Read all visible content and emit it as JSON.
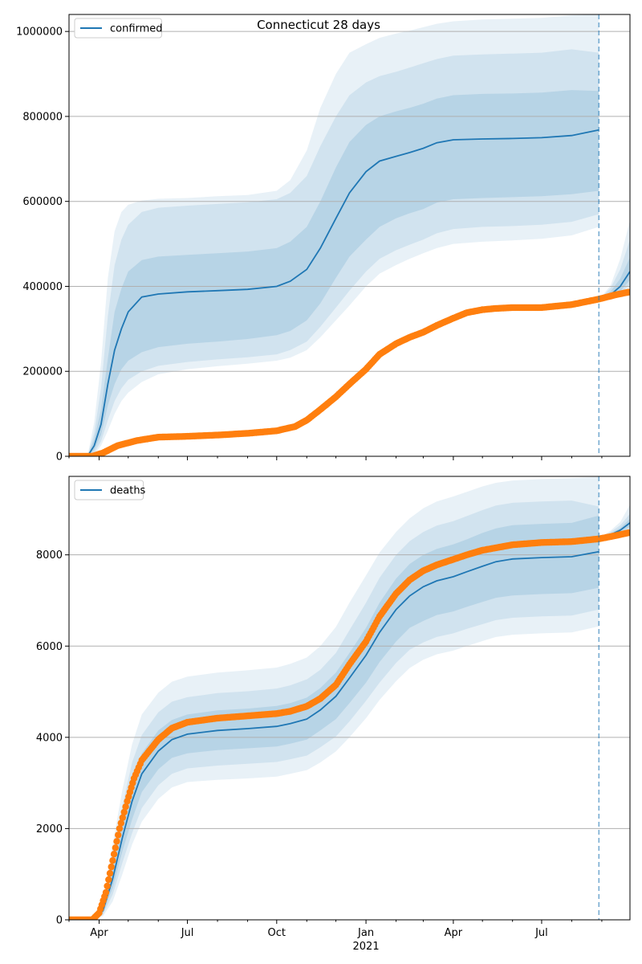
{
  "figure": {
    "title": "Connecticut 28 days"
  },
  "chart_data": [
    {
      "type": "line",
      "name": "confirmed-panel",
      "title": "Connecticut 28 days",
      "xlim": [
        "2020-03-01",
        "2021-09-30"
      ],
      "ylim": [
        0,
        1040000
      ],
      "y_ticks": [
        0,
        200000,
        400000,
        600000,
        800000,
        1000000
      ],
      "y_tick_labels": [
        "0",
        "200000",
        "400000",
        "600000",
        "800000",
        "1000000"
      ],
      "x_tick_labels": [],
      "x_year_label": "",
      "grid": "horizontal",
      "legend": {
        "position": "top-left",
        "entries": [
          "confirmed"
        ]
      },
      "forecast_date": "2021-08-29",
      "series_model": {
        "name": "confirmed",
        "color": "#1f77b4",
        "dates": [
          "2020-03-01",
          "2020-03-20",
          "2020-03-27",
          "2020-04-03",
          "2020-04-10",
          "2020-04-17",
          "2020-04-24",
          "2020-05-01",
          "2020-05-15",
          "2020-06-01",
          "2020-07-01",
          "2020-08-01",
          "2020-09-01",
          "2020-10-01",
          "2020-10-15",
          "2020-11-01",
          "2020-11-15",
          "2020-12-01",
          "2020-12-15",
          "2021-01-01",
          "2021-01-15",
          "2021-02-01",
          "2021-02-15",
          "2021-03-01",
          "2021-03-15",
          "2021-04-01",
          "2021-05-01",
          "2021-06-01",
          "2021-07-01",
          "2021-08-01",
          "2021-08-29"
        ],
        "values": [
          0,
          0,
          25000,
          75000,
          170000,
          250000,
          300000,
          340000,
          375000,
          382000,
          387000,
          390000,
          393000,
          400000,
          412000,
          440000,
          490000,
          560000,
          620000,
          670000,
          695000,
          706000,
          715000,
          725000,
          738000,
          745000,
          747000,
          748000,
          750000,
          755000,
          768000
        ],
        "bands": [
          {
            "lower": [
              0,
              0,
              15000,
              50000,
              120000,
              170000,
              205000,
              225000,
              245000,
              257000,
              265000,
              270000,
              276000,
              285000,
              295000,
              320000,
              360000,
              420000,
              470000,
              510000,
              540000,
              560000,
              572000,
              582000,
              597000,
              605000,
              608000,
              610000,
              612000,
              617000,
              625000
            ],
            "upper": [
              0,
              0,
              40000,
              110000,
              230000,
              340000,
              395000,
              435000,
              462000,
              470000,
              474000,
              478000,
              482000,
              490000,
              505000,
              540000,
              600000,
              680000,
              740000,
              780000,
              800000,
              812000,
              820000,
              830000,
              842000,
              850000,
              853000,
              854000,
              856000,
              862000,
              860000
            ]
          },
          {
            "lower": [
              0,
              0,
              8000,
              35000,
              85000,
              130000,
              160000,
              180000,
              200000,
              213000,
              222000,
              228000,
              233000,
              240000,
              250000,
              270000,
              305000,
              350000,
              390000,
              435000,
              465000,
              485000,
              498000,
              510000,
              525000,
              535000,
              540000,
              542000,
              545000,
              552000,
              570000
            ],
            "upper": [
              0,
              0,
              55000,
              160000,
              330000,
              450000,
              510000,
              545000,
              575000,
              585000,
              590000,
              594000,
              598000,
              605000,
              620000,
              660000,
              730000,
              800000,
              850000,
              880000,
              895000,
              905000,
              915000,
              925000,
              935000,
              943000,
              946000,
              948000,
              950000,
              958000,
              950000
            ]
          },
          {
            "lower": [
              0,
              0,
              4000,
              25000,
              60000,
              100000,
              130000,
              150000,
              175000,
              193000,
              205000,
              212000,
              218000,
              225000,
              232000,
              250000,
              280000,
              320000,
              355000,
              400000,
              430000,
              450000,
              465000,
              478000,
              490000,
              500000,
              505000,
              508000,
              512000,
              520000,
              540000
            ],
            "upper": [
              0,
              0,
              80000,
              220000,
              420000,
              530000,
              575000,
              592000,
              602000,
              606000,
              608000,
              612000,
              615000,
              625000,
              650000,
              720000,
              820000,
              900000,
              950000,
              970000,
              985000,
              995000,
              1002000,
              1010000,
              1018000,
              1024000,
              1028000,
              1030000,
              1032000,
              1038000,
              1040000
            ]
          }
        ],
        "tail_dates": [
          "2021-08-29",
          "2021-09-10",
          "2021-09-20",
          "2021-09-30"
        ],
        "tail_values": [
          368000,
          380000,
          400000,
          435000
        ],
        "tail_bands": [
          {
            "lower": [
              368000,
              374000,
              388000,
              415000
            ],
            "upper": [
              368000,
              388000,
              418000,
              468000
            ]
          },
          {
            "lower": [
              368000,
              371000,
              382000,
              405000
            ],
            "upper": [
              368000,
              396000,
              440000,
              510000
            ]
          },
          {
            "lower": [
              368000,
              369000,
              378000,
              398000
            ],
            "upper": [
              368000,
              402000,
              465000,
              555000
            ]
          }
        ]
      },
      "series_observed": {
        "color": "#ff7f0e",
        "dates": [
          "2020-03-01",
          "2020-03-25",
          "2020-04-05",
          "2020-04-20",
          "2020-05-10",
          "2020-06-01",
          "2020-07-01",
          "2020-08-01",
          "2020-09-01",
          "2020-10-01",
          "2020-10-20",
          "2020-11-01",
          "2020-11-15",
          "2020-12-01",
          "2020-12-15",
          "2021-01-01",
          "2021-01-15",
          "2021-02-01",
          "2021-02-15",
          "2021-03-01",
          "2021-03-15",
          "2021-04-01",
          "2021-04-15",
          "2021-05-01",
          "2021-05-15",
          "2021-06-01",
          "2021-07-01",
          "2021-08-01",
          "2021-08-29",
          "2021-09-15",
          "2021-09-30"
        ],
        "values": [
          0,
          0,
          8000,
          25000,
          37000,
          45000,
          47000,
          50000,
          54000,
          60000,
          70000,
          85000,
          110000,
          140000,
          170000,
          205000,
          240000,
          265000,
          280000,
          292000,
          308000,
          325000,
          338000,
          345000,
          348000,
          350000,
          350000,
          357000,
          370000,
          380000,
          387000
        ]
      }
    },
    {
      "type": "line",
      "name": "deaths-panel",
      "xlim": [
        "2020-03-01",
        "2021-09-30"
      ],
      "ylim": [
        0,
        9720
      ],
      "y_ticks": [
        0,
        2000,
        4000,
        6000,
        8000
      ],
      "y_tick_labels": [
        "0",
        "2000",
        "4000",
        "6000",
        "8000"
      ],
      "x_tick_labels": [
        {
          "date": "2020-04-01",
          "label": "Apr"
        },
        {
          "date": "2020-07-01",
          "label": "Jul"
        },
        {
          "date": "2020-10-01",
          "label": "Oct"
        },
        {
          "date": "2021-01-01",
          "label": "Jan"
        },
        {
          "date": "2021-04-01",
          "label": "Apr"
        },
        {
          "date": "2021-07-01",
          "label": "Jul"
        }
      ],
      "x_year_label": "2021",
      "grid": "horizontal",
      "legend": {
        "position": "top-left",
        "entries": [
          "deaths"
        ]
      },
      "forecast_date": "2021-08-29",
      "series_model": {
        "name": "deaths",
        "color": "#1f77b4",
        "dates": [
          "2020-03-01",
          "2020-03-25",
          "2020-04-05",
          "2020-04-15",
          "2020-04-25",
          "2020-05-05",
          "2020-05-15",
          "2020-06-01",
          "2020-06-15",
          "2020-07-01",
          "2020-08-01",
          "2020-09-01",
          "2020-10-01",
          "2020-10-15",
          "2020-11-01",
          "2020-11-15",
          "2020-12-01",
          "2020-12-15",
          "2021-01-01",
          "2021-01-15",
          "2021-02-01",
          "2021-02-15",
          "2021-03-01",
          "2021-03-15",
          "2021-04-01",
          "2021-04-15",
          "2021-05-01",
          "2021-05-15",
          "2021-06-01",
          "2021-07-01",
          "2021-08-01",
          "2021-08-29"
        ],
        "values": [
          0,
          0,
          200,
          900,
          1800,
          2600,
          3200,
          3700,
          3950,
          4070,
          4150,
          4190,
          4240,
          4300,
          4400,
          4600,
          4900,
          5300,
          5800,
          6300,
          6800,
          7100,
          7300,
          7430,
          7520,
          7630,
          7750,
          7850,
          7910,
          7940,
          7960,
          8070
        ],
        "bands": [
          {
            "lower": [
              0,
              0,
              150,
              700,
              1500,
              2200,
              2800,
              3300,
              3550,
              3650,
              3720,
              3760,
              3800,
              3860,
              3950,
              4150,
              4400,
              4750,
              5200,
              5650,
              6100,
              6400,
              6550,
              6680,
              6760,
              6860,
              6970,
              7060,
              7110,
              7140,
              7160,
              7280
            ],
            "upper": [
              0,
              0,
              260,
              1150,
              2150,
              3050,
              3650,
              4150,
              4380,
              4500,
              4590,
              4630,
              4690,
              4750,
              4870,
              5080,
              5420,
              5850,
              6400,
              6950,
              7480,
              7800,
              8000,
              8130,
              8230,
              8340,
              8480,
              8580,
              8650,
              8680,
              8700,
              8860
            ]
          },
          {
            "lower": [
              0,
              0,
              110,
              550,
              1250,
              1900,
              2450,
              2950,
              3200,
              3320,
              3380,
              3420,
              3460,
              3520,
              3600,
              3780,
              4020,
              4350,
              4800,
              5200,
              5630,
              5920,
              6080,
              6200,
              6280,
              6380,
              6480,
              6570,
              6620,
              6650,
              6670,
              6800
            ],
            "upper": [
              0,
              0,
              320,
              1400,
              2500,
              3450,
              4050,
              4550,
              4780,
              4880,
              4970,
              5010,
              5070,
              5140,
              5270,
              5480,
              5850,
              6350,
              6950,
              7500,
              8000,
              8300,
              8500,
              8640,
              8740,
              8850,
              8980,
              9080,
              9140,
              9170,
              9190,
              9060
            ]
          },
          {
            "lower": [
              0,
              0,
              80,
              400,
              1000,
              1650,
              2150,
              2650,
              2900,
              3020,
              3070,
              3100,
              3140,
              3200,
              3280,
              3450,
              3690,
              4000,
              4420,
              4820,
              5230,
              5520,
              5700,
              5820,
              5900,
              6000,
              6110,
              6200,
              6250,
              6280,
              6300,
              6430
            ],
            "upper": [
              0,
              0,
              380,
              1650,
              2850,
              3850,
              4500,
              4980,
              5220,
              5330,
              5420,
              5470,
              5530,
              5610,
              5750,
              6000,
              6420,
              6950,
              7550,
              8050,
              8500,
              8800,
              9020,
              9170,
              9280,
              9380,
              9500,
              9580,
              9630,
              9660,
              9680,
              9710
            ]
          }
        ],
        "tail_dates": [
          "2021-08-29",
          "2021-09-10",
          "2021-09-20",
          "2021-09-30"
        ],
        "tail_values": [
          8350,
          8440,
          8540,
          8700
        ],
        "tail_bands": [
          {
            "lower": [
              8350,
              8410,
              8490,
              8620
            ],
            "upper": [
              8350,
              8470,
              8590,
              8790
            ]
          },
          {
            "lower": [
              8350,
              8390,
              8450,
              8560
            ],
            "upper": [
              8350,
              8500,
              8650,
              8900
            ]
          },
          {
            "lower": [
              8350,
              8370,
              8420,
              8500
            ],
            "upper": [
              8350,
              8530,
              8720,
              9100
            ]
          }
        ]
      },
      "series_observed": {
        "color": "#ff7f0e",
        "dates": [
          "2020-03-01",
          "2020-03-25",
          "2020-04-01",
          "2020-04-08",
          "2020-04-15",
          "2020-04-22",
          "2020-04-30",
          "2020-05-07",
          "2020-05-15",
          "2020-06-01",
          "2020-06-15",
          "2020-07-01",
          "2020-08-01",
          "2020-09-01",
          "2020-10-01",
          "2020-10-15",
          "2020-11-01",
          "2020-11-15",
          "2020-12-01",
          "2020-12-15",
          "2021-01-01",
          "2021-01-15",
          "2021-02-01",
          "2021-02-15",
          "2021-03-01",
          "2021-03-15",
          "2021-04-01",
          "2021-04-15",
          "2021-05-01",
          "2021-06-01",
          "2021-07-01",
          "2021-08-01",
          "2021-08-29",
          "2021-09-15",
          "2021-09-30"
        ],
        "values": [
          0,
          0,
          150,
          600,
          1300,
          2000,
          2600,
          3100,
          3500,
          3950,
          4200,
          4330,
          4420,
          4470,
          4520,
          4570,
          4680,
          4850,
          5150,
          5600,
          6100,
          6650,
          7150,
          7450,
          7650,
          7780,
          7900,
          8000,
          8100,
          8220,
          8270,
          8290,
          8350,
          8420,
          8490
        ]
      }
    }
  ]
}
